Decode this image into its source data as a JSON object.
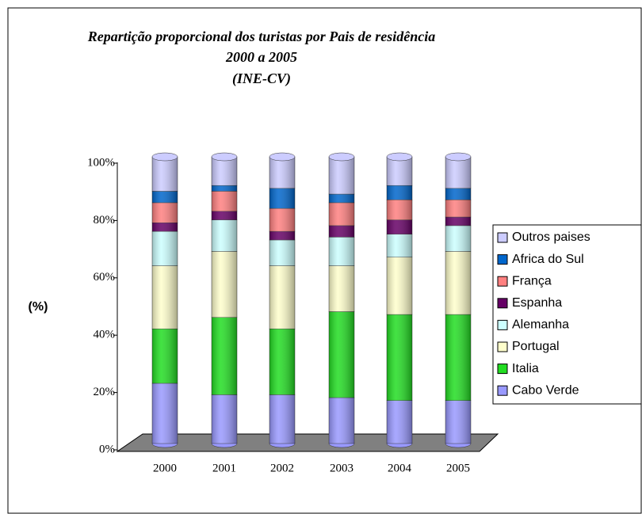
{
  "chart_data": {
    "type": "stacked_bar",
    "title": [
      "Repartição proporcional dos turistas por Pais de residência",
      "2000 a 2005",
      "(INE-CV)"
    ],
    "ylabel": "(%)",
    "categories": [
      "2000",
      "2001",
      "2002",
      "2003",
      "2004",
      "2005"
    ],
    "ylim": [
      0,
      100
    ],
    "yticks": [
      {
        "value": 0,
        "label": "0%"
      },
      {
        "value": 20,
        "label": "20%"
      },
      {
        "value": 40,
        "label": "40%"
      },
      {
        "value": 60,
        "label": "60%"
      },
      {
        "value": 80,
        "label": "80%"
      },
      {
        "value": 100,
        "label": "100%"
      }
    ],
    "series": [
      {
        "name": "Cabo Verde",
        "color": "#9999ff",
        "values": [
          21,
          17,
          17,
          16,
          15,
          15
        ]
      },
      {
        "name": "Italia",
        "color": "#22dd22",
        "values": [
          19,
          27,
          23,
          30,
          30,
          30
        ]
      },
      {
        "name": "Portugal",
        "color": "#ffffcc",
        "values": [
          22,
          23,
          22,
          16,
          20,
          22
        ]
      },
      {
        "name": "Alemanha",
        "color": "#ccffff",
        "values": [
          12,
          11,
          9,
          10,
          8,
          9
        ]
      },
      {
        "name": "Espanha",
        "color": "#660066",
        "values": [
          3,
          3,
          3,
          4,
          5,
          3
        ]
      },
      {
        "name": "França",
        "color": "#ff8080",
        "values": [
          7,
          7,
          8,
          8,
          7,
          6
        ]
      },
      {
        "name": "Africa do Sul",
        "color": "#0066cc",
        "values": [
          4,
          2,
          7,
          3,
          5,
          4
        ]
      },
      {
        "name": "Outros paises",
        "color": "#ccccff",
        "values": [
          12,
          10,
          11,
          13,
          10,
          11
        ]
      }
    ]
  }
}
